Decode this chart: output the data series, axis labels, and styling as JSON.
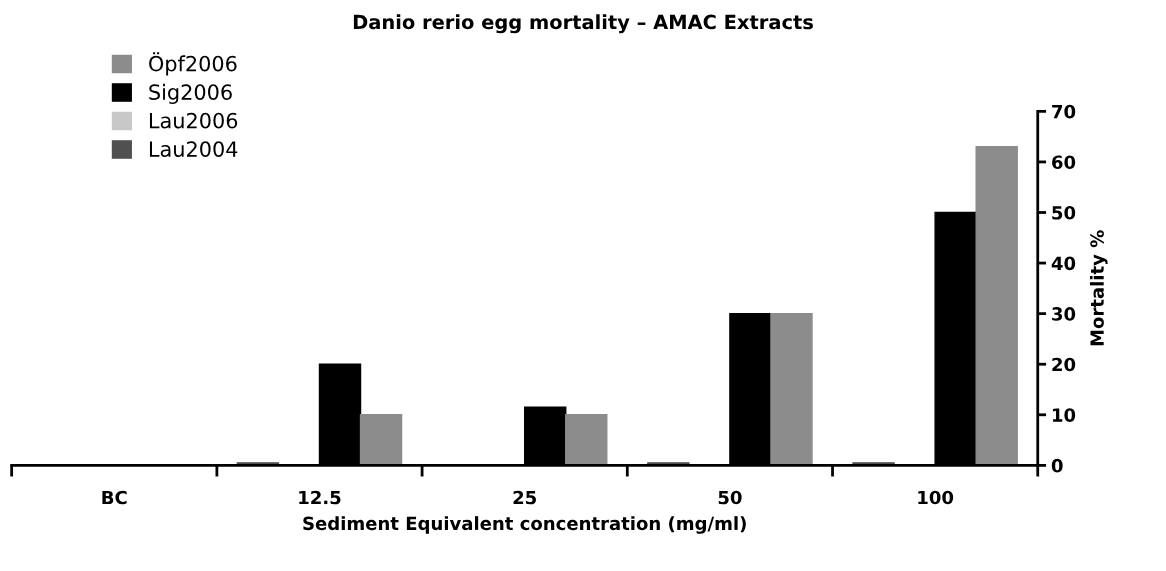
{
  "chart_data": {
    "type": "bar",
    "title": "Danio rerio egg mortality – AMAC Extracts",
    "xlabel": "Sediment Equivalent concentration (mg/ml)",
    "ylabel": "Mortality %",
    "categories": [
      "BC",
      "12.5",
      "25",
      "50",
      "100"
    ],
    "series": [
      {
        "name": "Öpf2006",
        "color": "#8c8c8c",
        "values": [
          null,
          10,
          10,
          30,
          63
        ]
      },
      {
        "name": "Sig2006",
        "color": "#000000",
        "values": [
          null,
          20,
          11.5,
          30,
          50
        ]
      },
      {
        "name": "Lau2006",
        "color": "#c8c8c8",
        "values": [
          null,
          null,
          null,
          null,
          null
        ]
      },
      {
        "name": "Lau2004",
        "color": "#505050",
        "values": [
          null,
          0.5,
          null,
          0.5,
          0.5
        ]
      }
    ],
    "ylim": [
      0,
      70
    ],
    "yticks": [
      0,
      10,
      20,
      30,
      40,
      50,
      60,
      70
    ],
    "grid": false,
    "legend": "top left"
  }
}
